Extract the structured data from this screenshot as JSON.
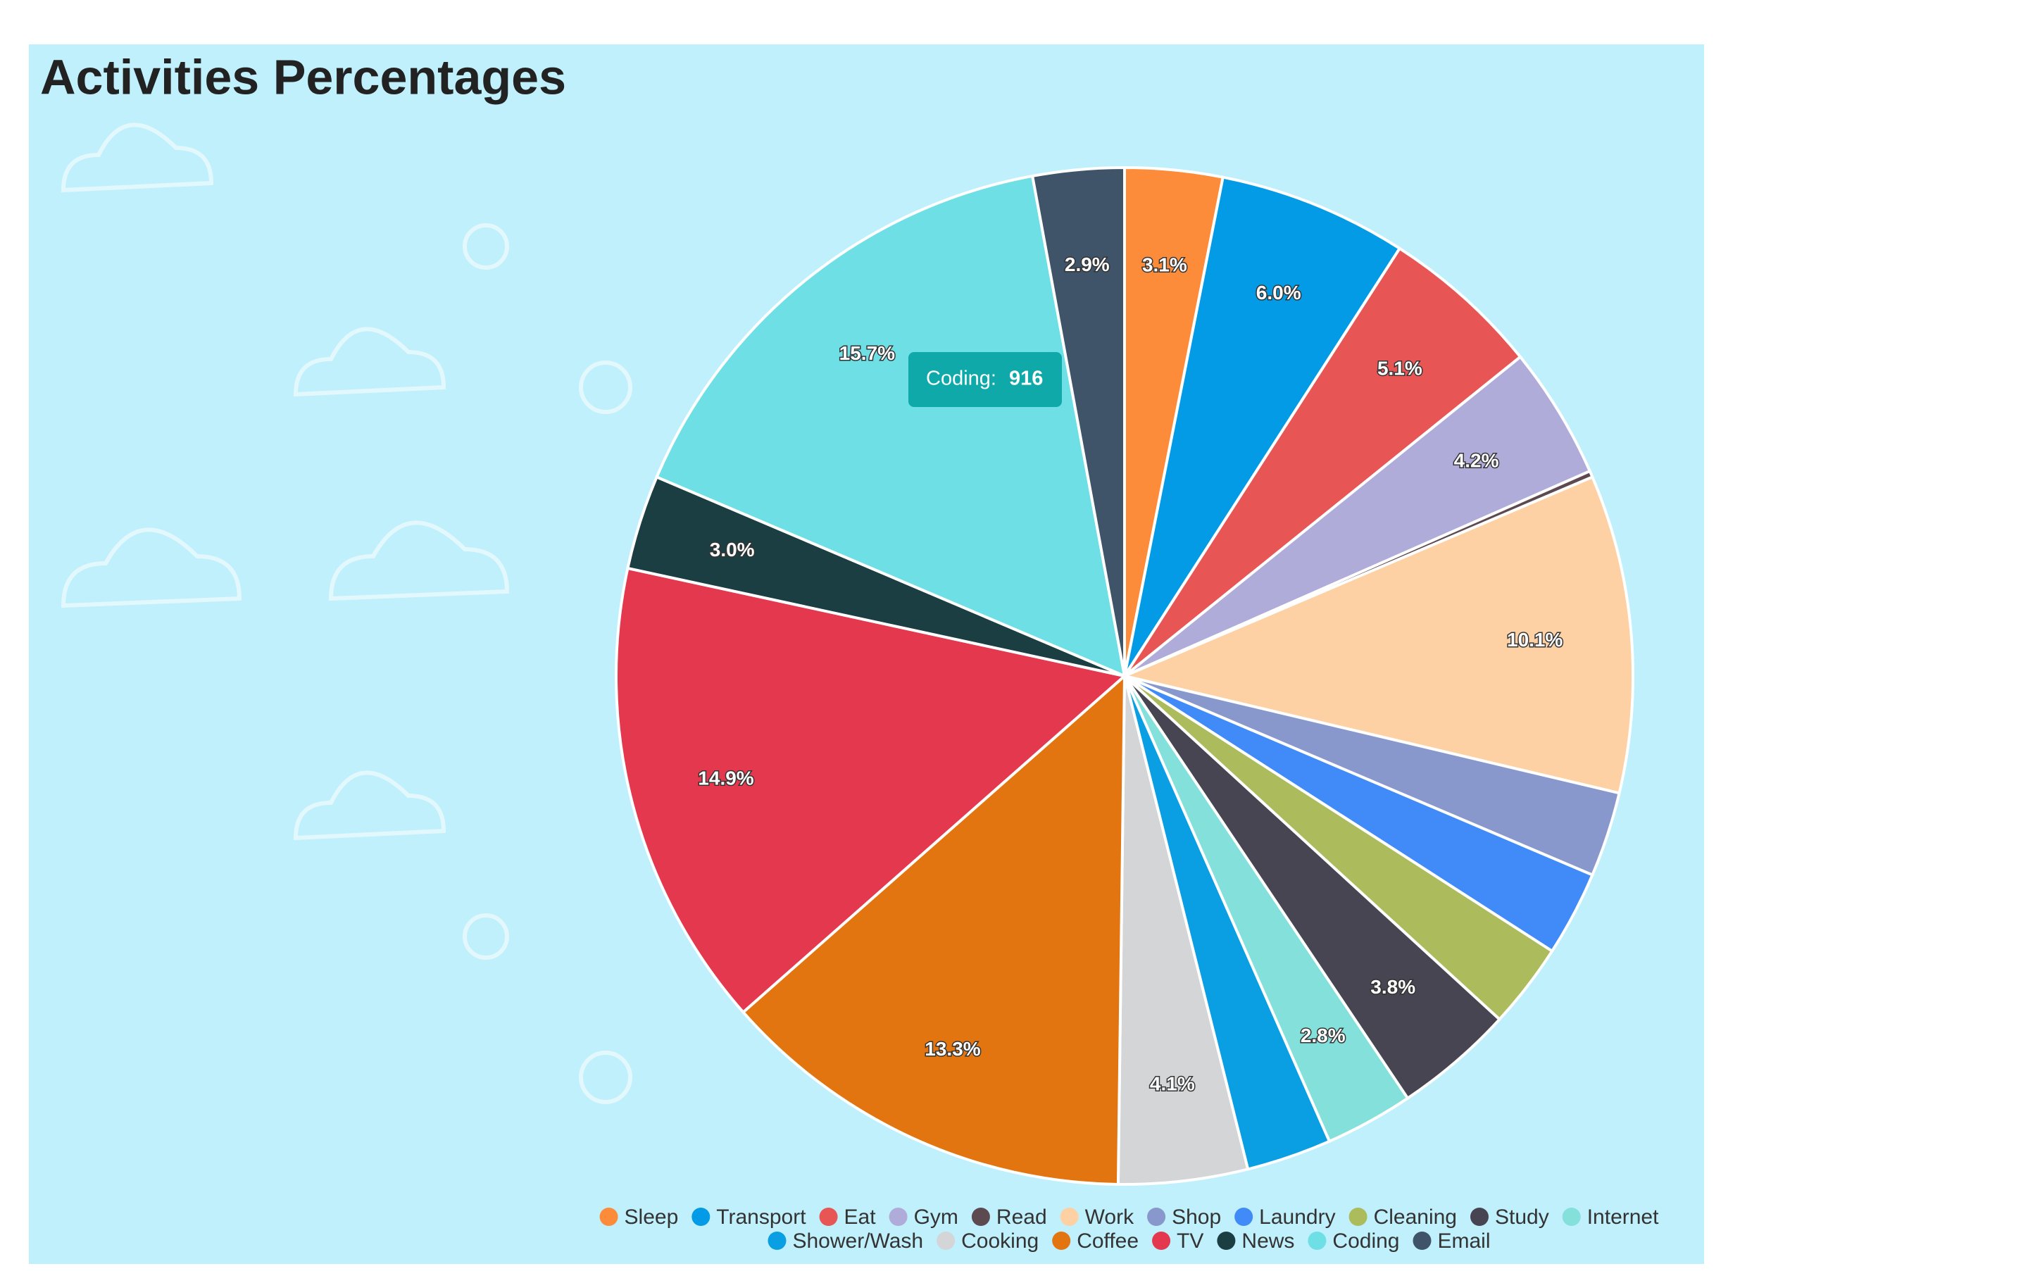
{
  "chart_data": {
    "type": "pie",
    "title": "Activities Percentages",
    "categories": [
      "Sleep",
      "Transport",
      "Eat",
      "Gym",
      "Read",
      "Work",
      "Shop",
      "Laundry",
      "Cleaning",
      "Study",
      "Internet",
      "Shower/Wash",
      "Cooking",
      "Coffee",
      "TV",
      "News",
      "Coding",
      "Email"
    ],
    "values": [
      3.1,
      6.0,
      5.1,
      4.2,
      0.2,
      10.1,
      2.7,
      2.7,
      2.7,
      3.8,
      2.8,
      2.7,
      4.1,
      13.3,
      14.9,
      3.0,
      15.7,
      2.9
    ],
    "value_labels": [
      "3.1%",
      "6.0%",
      "5.1%",
      "4.2%",
      null,
      "10.1%",
      null,
      null,
      null,
      "3.8%",
      "2.8%",
      null,
      "4.1%",
      "13.3%",
      "14.9%",
      "3.0%",
      "15.7%",
      "2.9%"
    ],
    "colors": [
      "#fd8c3a",
      "#039be5",
      "#e85555",
      "#b0acd9",
      "#5d4a50",
      "#fdd1a4",
      "#8898cc",
      "#418bf8",
      "#acbb5c",
      "#474551",
      "#84e0db",
      "#0a9ee3",
      "#d3d5d7",
      "#e2750f",
      "#e4384f",
      "#1b3e42",
      "#6fdfe6",
      "#3f5468"
    ],
    "tooltip": {
      "label": "Coding:",
      "value": 916
    }
  }
}
